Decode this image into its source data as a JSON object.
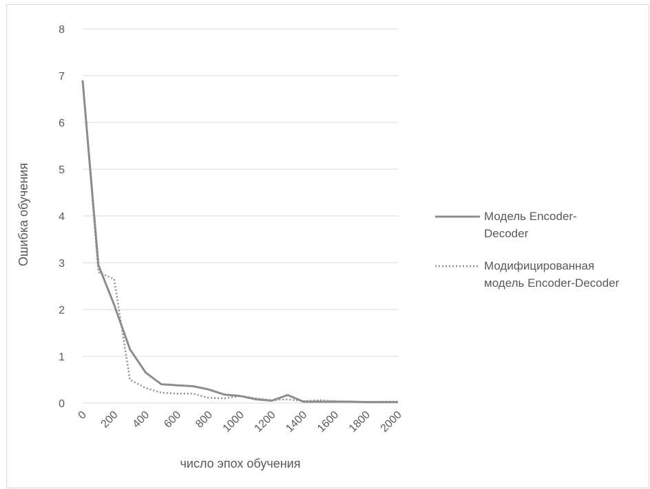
{
  "chart_data": {
    "type": "line",
    "title": "",
    "xlabel": "число эпох обучения",
    "ylabel": "Ошибка обучения",
    "ylim": [
      0,
      8
    ],
    "yticks": [
      0,
      1,
      2,
      3,
      4,
      5,
      6,
      7,
      8
    ],
    "xticks": [
      0,
      200,
      400,
      600,
      800,
      1000,
      1200,
      1400,
      1600,
      1800,
      2000
    ],
    "x": [
      0,
      100,
      200,
      300,
      400,
      500,
      600,
      700,
      800,
      900,
      1000,
      1100,
      1200,
      1300,
      1400,
      1500,
      1600,
      1700,
      1800,
      1900,
      2000
    ],
    "grid": true,
    "legend_position": "right",
    "series": [
      {
        "name_lines": [
          "Модель Encoder-",
          "Decoder"
        ],
        "style": "solid",
        "color": "#8c8c8c",
        "values": [
          6.9,
          2.95,
          2.1,
          1.15,
          0.65,
          0.4,
          0.38,
          0.36,
          0.29,
          0.18,
          0.15,
          0.08,
          0.05,
          0.17,
          0.03,
          0.03,
          0.03,
          0.03,
          0.02,
          0.02,
          0.02
        ]
      },
      {
        "name_lines": [
          "Модифицированная",
          "модель Encoder-Decoder"
        ],
        "style": "dotted",
        "color": "#8c8c8c",
        "values": [
          6.9,
          2.8,
          2.65,
          0.5,
          0.32,
          0.22,
          0.2,
          0.2,
          0.11,
          0.1,
          0.15,
          0.1,
          0.06,
          0.08,
          0.04,
          0.06,
          0.04,
          0.03,
          0.02,
          0.03,
          0.03
        ]
      }
    ]
  }
}
